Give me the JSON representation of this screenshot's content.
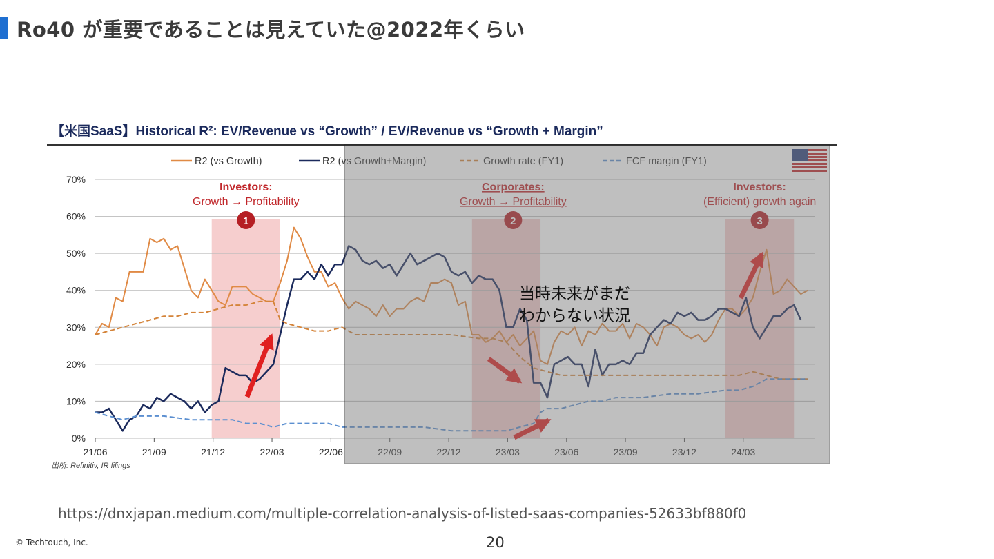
{
  "slide": {
    "title": "Ro40 が重要であることは見えていた@2022年くらい",
    "note_line1": "当時未来がまだ",
    "note_line2": "わからない状況",
    "url": "https://dnxjapan.medium.com/multiple-correlation-analysis-of-listed-saas-companies-52633bf880f0",
    "copyright": "© Techtouch, Inc.",
    "page_number": "20"
  },
  "colors": {
    "accent": "#1f6fd1",
    "r2_growth": "#e08a45",
    "r2_growth_margin": "#1b2a5c",
    "growth_rate": "#d4843a",
    "fcf_margin": "#5b8fd0",
    "highlight": "#f5c6c6",
    "annotation_red": "#c0262a",
    "overlay": "#7a7a7a"
  },
  "chart_data": {
    "type": "line",
    "title": "【米国SaaS】Historical R²: EV/Revenue vs “Growth”   / EV/Revenue vs “Growth + Margin”",
    "source": "出所: Refinitiv, IR filings",
    "ylim": [
      0,
      70
    ],
    "y_ticks": [
      "70%",
      "60%",
      "50%",
      "40%",
      "30%",
      "20%",
      "10%",
      "0%"
    ],
    "x_ticks": [
      "21/06",
      "21/09",
      "21/12",
      "22/03",
      "22/06",
      "22/09",
      "22/12",
      "23/03",
      "23/06",
      "23/09",
      "23/12",
      "24/03"
    ],
    "x_range_months": [
      0,
      34
    ],
    "grid": true,
    "legend": "top",
    "series": [
      {
        "name": "R2 (vs Growth)",
        "style": "solid",
        "points": [
          [
            0,
            28
          ],
          [
            0.5,
            31
          ],
          [
            1,
            30
          ],
          [
            1.5,
            38
          ],
          [
            2,
            37
          ],
          [
            2.5,
            45
          ],
          [
            3,
            45
          ],
          [
            3.5,
            45
          ],
          [
            4,
            54
          ],
          [
            4.5,
            53
          ],
          [
            5,
            54
          ],
          [
            5.5,
            51
          ],
          [
            6,
            52
          ],
          [
            6.5,
            46
          ],
          [
            7,
            40
          ],
          [
            7.5,
            38
          ],
          [
            8,
            43
          ],
          [
            8.5,
            40
          ],
          [
            9,
            37
          ],
          [
            9.5,
            36
          ],
          [
            10,
            41
          ],
          [
            10.5,
            41
          ],
          [
            11,
            41
          ],
          [
            11.5,
            39
          ],
          [
            12,
            38
          ],
          [
            12.5,
            37
          ],
          [
            13,
            37
          ],
          [
            13.5,
            42
          ],
          [
            14,
            48
          ],
          [
            14.5,
            57
          ],
          [
            15,
            54
          ],
          [
            15.5,
            49
          ],
          [
            16,
            45
          ],
          [
            16.5,
            45
          ],
          [
            17,
            41
          ],
          [
            17.5,
            42
          ],
          [
            18,
            38
          ],
          [
            18.5,
            35
          ],
          [
            19,
            37
          ],
          [
            19.5,
            36
          ],
          [
            20,
            35
          ],
          [
            20.5,
            33
          ],
          [
            21,
            36
          ],
          [
            21.5,
            33
          ],
          [
            22,
            35
          ],
          [
            22.5,
            35
          ],
          [
            23,
            37
          ],
          [
            23.5,
            38
          ],
          [
            24,
            37
          ],
          [
            24.5,
            42
          ],
          [
            25,
            42
          ],
          [
            25.5,
            43
          ],
          [
            26,
            42
          ],
          [
            26.5,
            36
          ],
          [
            27,
            37
          ],
          [
            27.5,
            28
          ],
          [
            28,
            28
          ],
          [
            28.5,
            26
          ],
          [
            29,
            27
          ],
          [
            29.5,
            29
          ],
          [
            30,
            26
          ],
          [
            30.5,
            28
          ],
          [
            31,
            25
          ],
          [
            31.5,
            27
          ],
          [
            32,
            29
          ],
          [
            32.5,
            21
          ],
          [
            33,
            20
          ],
          [
            33.5,
            26
          ],
          [
            34,
            29
          ],
          [
            34.5,
            28
          ],
          [
            35,
            30
          ],
          [
            35.5,
            25
          ],
          [
            36,
            29
          ],
          [
            36.5,
            28
          ],
          [
            37,
            31
          ],
          [
            37.5,
            29
          ],
          [
            38,
            29
          ],
          [
            38.5,
            31
          ],
          [
            39,
            27
          ],
          [
            39.5,
            31
          ],
          [
            40,
            30
          ],
          [
            40.5,
            28
          ],
          [
            41,
            25
          ],
          [
            41.5,
            30
          ],
          [
            42,
            31
          ],
          [
            42.5,
            30
          ],
          [
            43,
            28
          ],
          [
            43.5,
            27
          ],
          [
            44,
            28
          ],
          [
            44.5,
            26
          ],
          [
            45,
            28
          ],
          [
            45.5,
            32
          ],
          [
            46,
            35
          ],
          [
            46.5,
            35
          ],
          [
            47,
            33
          ],
          [
            47.5,
            35
          ],
          [
            48,
            38
          ],
          [
            48.5,
            45
          ],
          [
            49,
            51
          ],
          [
            49.5,
            39
          ],
          [
            50,
            40
          ],
          [
            50.5,
            43
          ],
          [
            51,
            41
          ],
          [
            51.5,
            39
          ],
          [
            52,
            40
          ]
        ]
      },
      {
        "name": "R2 (vs Growth+Margin)",
        "style": "solid",
        "points": [
          [
            0,
            7
          ],
          [
            0.5,
            7
          ],
          [
            1,
            8
          ],
          [
            1.5,
            5
          ],
          [
            2,
            2
          ],
          [
            2.5,
            5
          ],
          [
            3,
            6
          ],
          [
            3.5,
            9
          ],
          [
            4,
            8
          ],
          [
            4.5,
            11
          ],
          [
            5,
            10
          ],
          [
            5.5,
            12
          ],
          [
            6,
            11
          ],
          [
            6.5,
            10
          ],
          [
            7,
            8
          ],
          [
            7.5,
            10
          ],
          [
            8,
            7
          ],
          [
            8.5,
            9
          ],
          [
            9,
            10
          ],
          [
            9.5,
            19
          ],
          [
            10,
            18
          ],
          [
            10.5,
            17
          ],
          [
            11,
            17
          ],
          [
            11.5,
            15
          ],
          [
            12,
            16
          ],
          [
            12.5,
            18
          ],
          [
            13,
            20
          ],
          [
            13.5,
            28
          ],
          [
            14,
            36
          ],
          [
            14.5,
            43
          ],
          [
            15,
            43
          ],
          [
            15.5,
            45
          ],
          [
            16,
            43
          ],
          [
            16.5,
            47
          ],
          [
            17,
            44
          ],
          [
            17.5,
            47
          ],
          [
            18,
            47
          ],
          [
            18.5,
            52
          ],
          [
            19,
            51
          ],
          [
            19.5,
            48
          ],
          [
            20,
            47
          ],
          [
            20.5,
            48
          ],
          [
            21,
            46
          ],
          [
            21.5,
            47
          ],
          [
            22,
            44
          ],
          [
            22.5,
            47
          ],
          [
            23,
            50
          ],
          [
            23.5,
            47
          ],
          [
            24,
            48
          ],
          [
            24.5,
            49
          ],
          [
            25,
            50
          ],
          [
            25.5,
            49
          ],
          [
            26,
            45
          ],
          [
            26.5,
            44
          ],
          [
            27,
            45
          ],
          [
            27.5,
            42
          ],
          [
            28,
            44
          ],
          [
            28.5,
            43
          ],
          [
            29,
            43
          ],
          [
            29.5,
            40
          ],
          [
            30,
            30
          ],
          [
            30.5,
            30
          ],
          [
            31,
            35
          ],
          [
            31.5,
            32
          ],
          [
            32,
            15
          ],
          [
            32.5,
            15
          ],
          [
            33,
            11
          ],
          [
            33.5,
            20
          ],
          [
            34,
            21
          ],
          [
            34.5,
            22
          ],
          [
            35,
            20
          ],
          [
            35.5,
            20
          ],
          [
            36,
            14
          ],
          [
            36.5,
            24
          ],
          [
            37,
            17
          ],
          [
            37.5,
            20
          ],
          [
            38,
            20
          ],
          [
            38.5,
            21
          ],
          [
            39,
            20
          ],
          [
            39.5,
            23
          ],
          [
            40,
            23
          ],
          [
            40.5,
            28
          ],
          [
            41,
            30
          ],
          [
            41.5,
            32
          ],
          [
            42,
            31
          ],
          [
            42.5,
            34
          ],
          [
            43,
            33
          ],
          [
            43.5,
            34
          ],
          [
            44,
            32
          ],
          [
            44.5,
            32
          ],
          [
            45,
            33
          ],
          [
            45.5,
            35
          ],
          [
            46,
            35
          ],
          [
            46.5,
            34
          ],
          [
            47,
            33
          ],
          [
            47.5,
            38
          ],
          [
            48,
            30
          ],
          [
            48.5,
            27
          ],
          [
            49,
            30
          ],
          [
            49.5,
            33
          ],
          [
            50,
            33
          ],
          [
            50.5,
            35
          ],
          [
            51,
            36
          ],
          [
            51.5,
            32
          ]
        ]
      },
      {
        "name": "Growth rate (FY1)",
        "style": "dashed",
        "points": [
          [
            0,
            28
          ],
          [
            1,
            29
          ],
          [
            2,
            30
          ],
          [
            3,
            31
          ],
          [
            4,
            32
          ],
          [
            5,
            33
          ],
          [
            6,
            33
          ],
          [
            7,
            34
          ],
          [
            8,
            34
          ],
          [
            9,
            35
          ],
          [
            10,
            36
          ],
          [
            11,
            36
          ],
          [
            12,
            37
          ],
          [
            13,
            37
          ],
          [
            13.5,
            32
          ],
          [
            14,
            31
          ],
          [
            15,
            30
          ],
          [
            16,
            29
          ],
          [
            17,
            29
          ],
          [
            18,
            30
          ],
          [
            19,
            28
          ],
          [
            20,
            28
          ],
          [
            22,
            28
          ],
          [
            24,
            28
          ],
          [
            26,
            28
          ],
          [
            28,
            27
          ],
          [
            29,
            27
          ],
          [
            30,
            26
          ],
          [
            31,
            22
          ],
          [
            32,
            19
          ],
          [
            33,
            18
          ],
          [
            34,
            17
          ],
          [
            36,
            17
          ],
          [
            38,
            17
          ],
          [
            40,
            17
          ],
          [
            42,
            17
          ],
          [
            44,
            17
          ],
          [
            46,
            17
          ],
          [
            47,
            17
          ],
          [
            48,
            18
          ],
          [
            49,
            17
          ],
          [
            50,
            16
          ],
          [
            52,
            16
          ]
        ]
      },
      {
        "name": "FCF margin (FY1)",
        "style": "dashed",
        "points": [
          [
            0,
            7
          ],
          [
            1,
            6
          ],
          [
            2,
            5
          ],
          [
            3,
            6
          ],
          [
            5,
            6
          ],
          [
            7,
            5
          ],
          [
            9,
            5
          ],
          [
            10,
            5
          ],
          [
            11,
            4
          ],
          [
            12,
            4
          ],
          [
            13,
            3
          ],
          [
            14,
            4
          ],
          [
            15,
            4
          ],
          [
            16,
            4
          ],
          [
            17,
            4
          ],
          [
            18,
            3
          ],
          [
            20,
            3
          ],
          [
            22,
            3
          ],
          [
            24,
            3
          ],
          [
            26,
            2
          ],
          [
            28,
            2
          ],
          [
            29,
            2
          ],
          [
            30,
            2
          ],
          [
            31,
            3
          ],
          [
            32,
            4
          ],
          [
            32.5,
            7
          ],
          [
            33,
            8
          ],
          [
            34,
            8
          ],
          [
            35,
            9
          ],
          [
            36,
            10
          ],
          [
            37,
            10
          ],
          [
            38,
            11
          ],
          [
            40,
            11
          ],
          [
            42,
            12
          ],
          [
            44,
            12
          ],
          [
            46,
            13
          ],
          [
            47,
            13
          ],
          [
            48,
            14
          ],
          [
            49,
            16
          ],
          [
            50,
            16
          ],
          [
            52,
            16
          ]
        ]
      }
    ],
    "annotations": [
      {
        "number": "1",
        "line1": "Investors:",
        "line2": "Growth → Profitability",
        "x": 11
      },
      {
        "number": "2",
        "line1": "Corporates:",
        "line2": "Growth → Profitability",
        "x": 30.5
      },
      {
        "number": "3",
        "line1": "Investors:",
        "line2": "(Efficient) growth again",
        "x": 48.5
      }
    ],
    "highlight_ranges": [
      [
        8.5,
        13.5
      ],
      [
        27.5,
        32.5
      ],
      [
        46,
        51
      ]
    ],
    "overlay_range": [
      18.5,
      52.5
    ],
    "x_max": 52.5,
    "tick_positions_x": [
      0,
      4.3,
      8.6,
      12.9,
      17.2,
      21.5,
      25.8,
      30.1,
      34.4,
      38.7,
      43.0,
      47.3
    ]
  }
}
